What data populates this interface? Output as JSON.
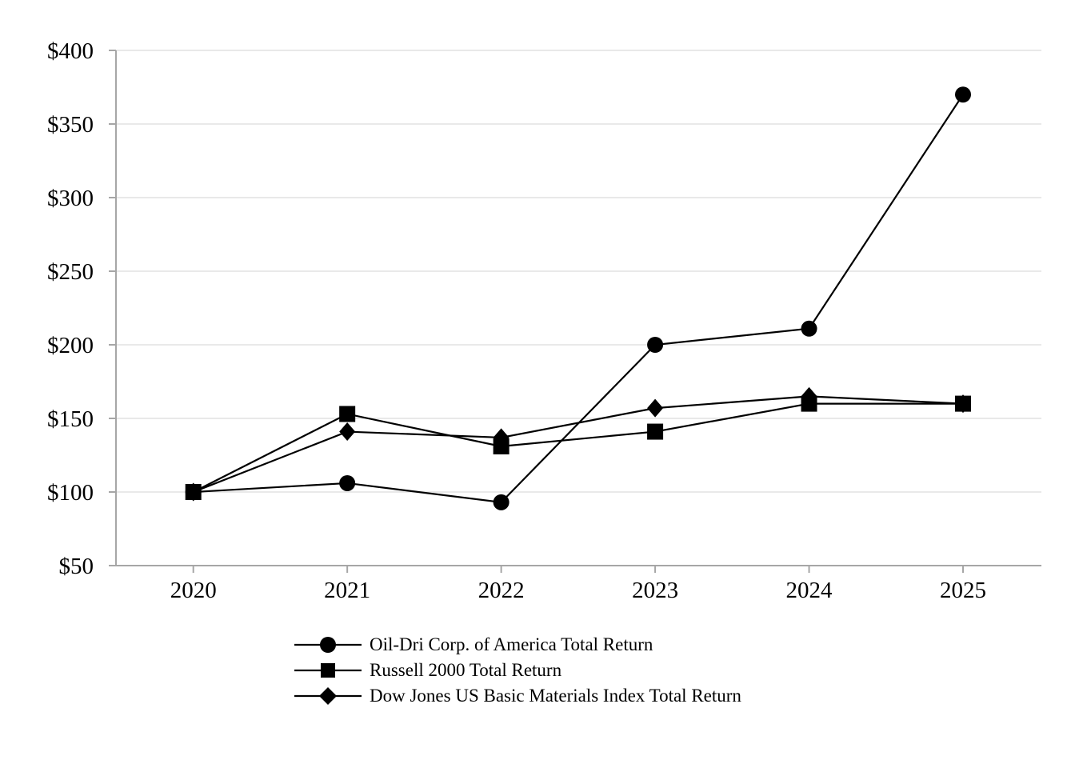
{
  "chart_data": {
    "type": "line",
    "title": "",
    "categories": [
      "2020",
      "2021",
      "2022",
      "2023",
      "2024",
      "2025"
    ],
    "series": [
      {
        "name": "Oil-Dri Corp. of America Total Return",
        "marker": "circle",
        "values": [
          100,
          106,
          93,
          200,
          211,
          370
        ]
      },
      {
        "name": "Russell 2000 Total Return",
        "marker": "square",
        "values": [
          100,
          153,
          131,
          141,
          160,
          160
        ]
      },
      {
        "name": "Dow Jones US Basic Materials Index Total Return",
        "marker": "diamond",
        "values": [
          100,
          141,
          137,
          157,
          165,
          160
        ]
      }
    ],
    "x_axis": {
      "tick_labels": [
        "2020",
        "2021",
        "2022",
        "2023",
        "2024",
        "2025"
      ]
    },
    "y_axis": {
      "min": 50,
      "max": 400,
      "step": 50,
      "tick_labels": [
        "$50",
        "$100",
        "$150",
        "$200",
        "$250",
        "$300",
        "$350",
        "$400"
      ],
      "currency_format": true
    },
    "grid": true,
    "legend_position": "bottom-left",
    "colors": {
      "series": "#000000",
      "gridline": "#e2e2e2",
      "axis": "#a6a6a6",
      "text": "#000000",
      "background": "#ffffff"
    }
  }
}
